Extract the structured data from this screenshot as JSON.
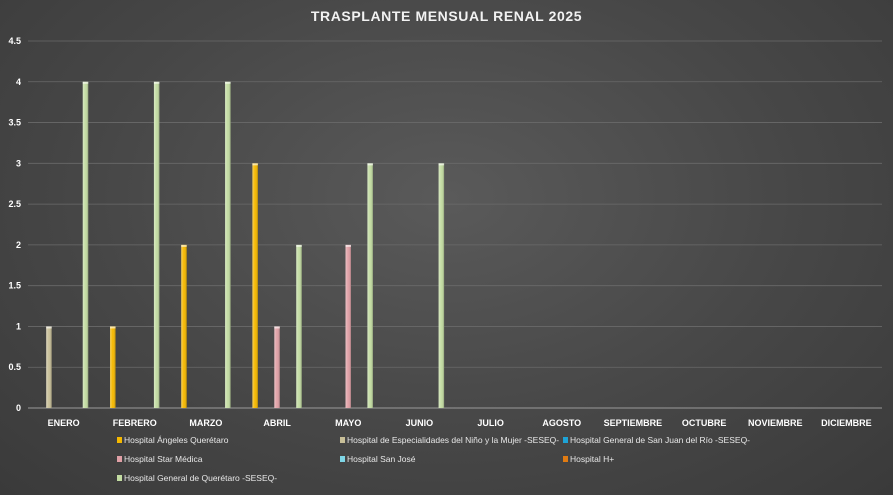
{
  "chart_data": {
    "type": "bar",
    "title": "TRASPLANTE MENSUAL RENAL 2025",
    "xlabel": "",
    "ylabel": "",
    "ylim": [
      0,
      4.5
    ],
    "ytick_step": 0.5,
    "yticks": [
      "0",
      "0.5",
      "1",
      "1.5",
      "2",
      "2.5",
      "3",
      "3.5",
      "4",
      "4.5"
    ],
    "grid": true,
    "legend_position": "bottom",
    "categories": [
      "ENERO",
      "FEBRERO",
      "MARZO",
      "ABRIL",
      "MAYO",
      "JUNIO",
      "JULIO",
      "AGOSTO",
      "SEPTIEMBRE",
      "OCTUBRE",
      "NOVIEMBRE",
      "DICIEMBRE"
    ],
    "series": [
      {
        "name": "Hospital Ángeles Querétaro",
        "color": "#f5b800",
        "values": [
          null,
          1,
          2,
          3,
          null,
          null,
          null,
          null,
          null,
          null,
          null,
          null
        ]
      },
      {
        "name": "Hospital de Especialidades del Niño y la Mujer -SESEQ-",
        "color": "#c8bf98",
        "values": [
          1,
          null,
          null,
          null,
          null,
          null,
          null,
          null,
          null,
          null,
          null,
          null
        ]
      },
      {
        "name": "Hospital General de San Juan del Río -SESEQ-",
        "color": "#1ea3d6",
        "values": [
          null,
          null,
          null,
          null,
          null,
          null,
          null,
          null,
          null,
          null,
          null,
          null
        ]
      },
      {
        "name": "Hospital Star Médica",
        "color": "#e0a0a6",
        "values": [
          null,
          null,
          null,
          1,
          2,
          null,
          null,
          null,
          null,
          null,
          null,
          null
        ]
      },
      {
        "name": "Hospital San José",
        "color": "#7fd6e6",
        "values": [
          null,
          null,
          null,
          null,
          null,
          null,
          null,
          null,
          null,
          null,
          null,
          null
        ]
      },
      {
        "name": "Hospital H+",
        "color": "#e07b12",
        "values": [
          null,
          null,
          null,
          null,
          null,
          null,
          null,
          null,
          null,
          null,
          null,
          null
        ]
      },
      {
        "name": "Hospital General de Querétaro -SESEQ-",
        "color": "#c3dca2",
        "values": [
          4,
          4,
          4,
          2,
          3,
          3,
          null,
          null,
          null,
          null,
          null,
          null
        ]
      }
    ]
  }
}
